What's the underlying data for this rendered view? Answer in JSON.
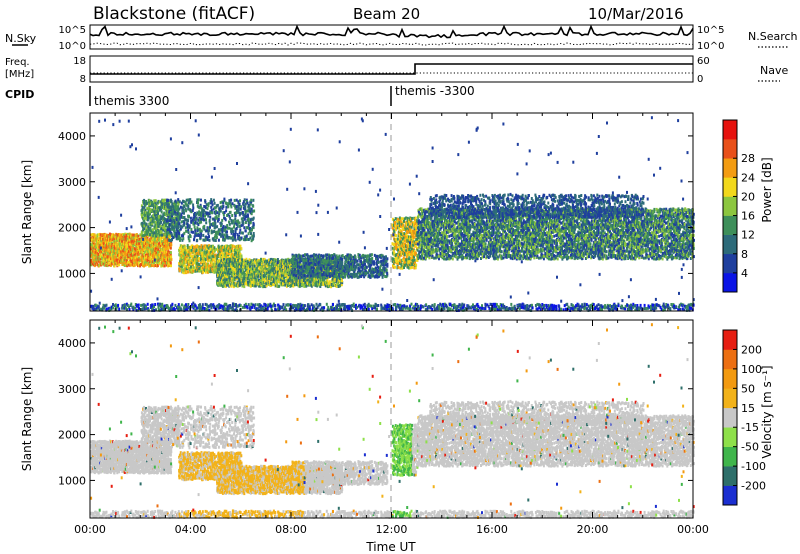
{
  "header": {
    "station": "Blackstone (fitACF)",
    "beam": "Beam 20",
    "date": "10/Mar/2016"
  },
  "noise_panel": {
    "left_label": "N.Sky",
    "right_label": "N.Search",
    "y_ticks": [
      "10^5",
      "10^0"
    ],
    "right_ticks": [
      "10^5",
      "10^0"
    ]
  },
  "freq_panel": {
    "left_label_1": "Freq.",
    "left_label_2": "[MHz]",
    "right_label": "Nave",
    "y_ticks": [
      "18",
      "8"
    ],
    "right_ticks": [
      "60",
      "0"
    ]
  },
  "cpid_panel": {
    "label": "CPID",
    "segments": [
      {
        "text": "themis 3300",
        "start_hour": 0
      },
      {
        "text": "themis -3300",
        "start_hour": 12
      }
    ]
  },
  "chart_data": [
    {
      "type": "heatmap",
      "name": "power",
      "ylabel": "Slant Range [km]",
      "ylim": [
        180,
        4500
      ],
      "yticks": [
        1000,
        2000,
        3000,
        4000
      ],
      "xlim_hours": [
        0,
        24
      ],
      "colorbar": {
        "label": "Power [dB]",
        "ticks": [
          4,
          8,
          12,
          16,
          20,
          24,
          28
        ],
        "colors": [
          "#0a14e6",
          "#1f3f9e",
          "#2d6b7a",
          "#3e8f5a",
          "#8cc63f",
          "#f2d81c",
          "#f39c12",
          "#e8501a",
          "#e6120e"
        ]
      }
    },
    {
      "type": "heatmap",
      "name": "velocity",
      "ylabel": "Slant Range [km]",
      "xlabel": "Time UT",
      "ylim": [
        180,
        4500
      ],
      "yticks": [
        1000,
        2000,
        3000,
        4000
      ],
      "xlim_hours": [
        0,
        24
      ],
      "xticks": [
        "00:00",
        "04:00",
        "08:00",
        "12:00",
        "16:00",
        "20:00",
        "00:00"
      ],
      "colorbar": {
        "label": "Velocity [m s⁻¹]",
        "ticks": [
          200,
          100,
          50,
          15,
          -15,
          -50,
          -100,
          -200
        ],
        "colors": [
          "#1b2fd1",
          "#2e6f6a",
          "#3fb54b",
          "#8ee04a",
          "#c8c8c8",
          "#f2b21a",
          "#f39a10",
          "#ec6f12",
          "#e61e12"
        ]
      }
    }
  ]
}
